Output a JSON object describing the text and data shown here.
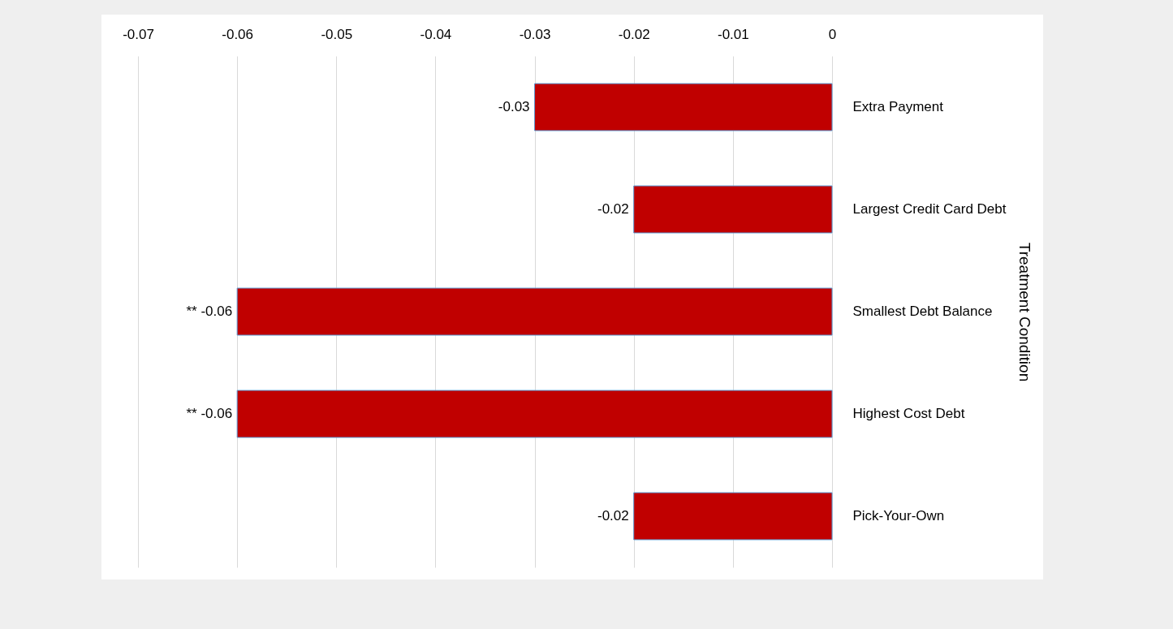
{
  "chart_data": {
    "type": "bar",
    "orientation": "horizontal",
    "ylabel": "Treatment Condition",
    "categories": [
      "Extra Payment",
      "Largest Credit Card Debt",
      "Smallest Debt Balance",
      "Highest Cost Debt",
      "Pick-Your-Own"
    ],
    "values": [
      -0.03,
      -0.02,
      -0.06,
      -0.06,
      -0.02
    ],
    "color": "#c00000",
    "xlim": [
      -0.07,
      0
    ],
    "xticks": [
      -0.07,
      -0.06,
      -0.05,
      -0.04,
      -0.03,
      -0.02,
      -0.01,
      0
    ],
    "grid": "x",
    "value_labels": [
      "-0.03",
      "-0.02",
      "**  -0.06",
      "**  -0.06",
      "-0.02"
    ]
  }
}
